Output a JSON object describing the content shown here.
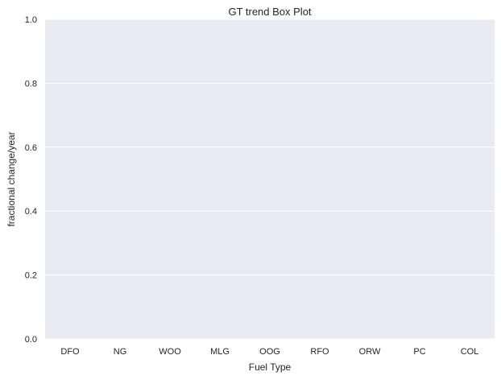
{
  "chart_data": {
    "type": "box",
    "title": "GT trend Box Plot",
    "xlabel": "Fuel Type",
    "ylabel": "fractional change/year",
    "categories": [
      "DFO",
      "NG",
      "WOO",
      "MLG",
      "OOG",
      "RFO",
      "ORW",
      "PC",
      "COL"
    ],
    "ylim": [
      0.0,
      1.0
    ],
    "yticks": [
      "0.0",
      "0.2",
      "0.4",
      "0.6",
      "0.8",
      "1.0"
    ],
    "series": [],
    "grid": true,
    "legend": "none"
  },
  "colors": {
    "plot_background": "#EAEAF2",
    "grid": "#FFFFFF",
    "text": "#262626"
  }
}
